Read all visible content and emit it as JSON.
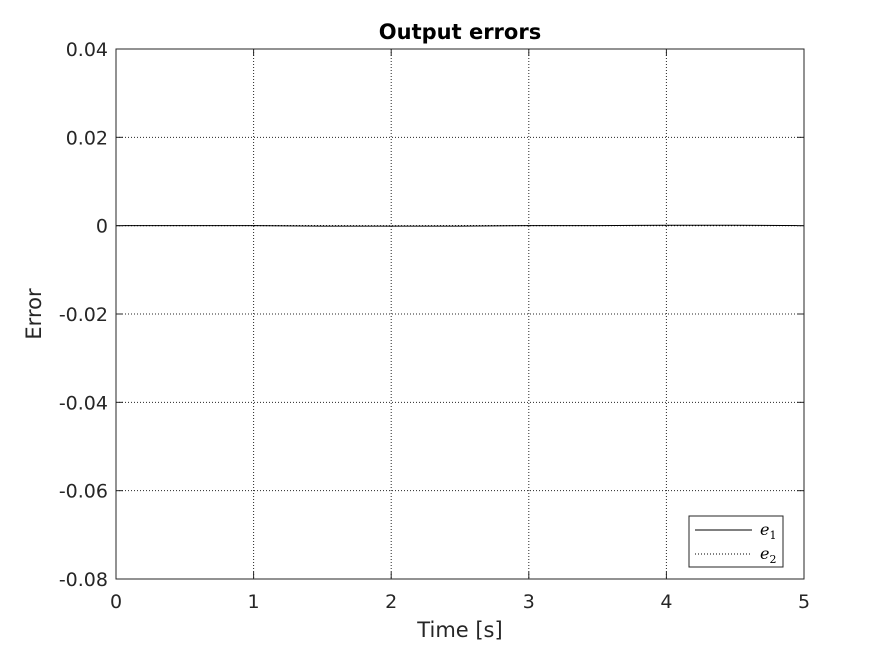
{
  "chart_data": {
    "type": "line",
    "title": "Output errors",
    "xlabel": "Time [s]",
    "ylabel": "Error",
    "xlim": [
      0,
      5
    ],
    "ylim": [
      -0.08,
      0.04
    ],
    "x_ticks": [
      0,
      1,
      2,
      3,
      4,
      5
    ],
    "x_tick_labels": [
      "0",
      "1",
      "2",
      "3",
      "4",
      "5"
    ],
    "y_ticks": [
      0.04,
      0.02,
      0,
      -0.02,
      -0.04,
      -0.06,
      -0.08
    ],
    "y_tick_labels": [
      "0.04",
      "0.02",
      "0",
      "-0.02",
      "-0.04",
      "-0.06",
      "-0.08"
    ],
    "grid": true,
    "legend_position": "bottom-right",
    "series": [
      {
        "name": "e",
        "subscript": "1",
        "line_style": "solid",
        "color": "#000000",
        "x": [
          0,
          0.5,
          1,
          1.5,
          2,
          2.5,
          3,
          3.5,
          4,
          4.5,
          5
        ],
        "y": [
          0,
          0,
          0,
          -0.0001,
          -0.0001,
          -0.0001,
          0,
          0,
          0.0001,
          0.0001,
          0
        ]
      },
      {
        "name": "e",
        "subscript": "2",
        "line_style": "dotted",
        "color": "#000000",
        "x": [
          0,
          0.5,
          1,
          1.5,
          2,
          2.5,
          3,
          3.5,
          4,
          4.5,
          5
        ],
        "y": [
          0,
          0,
          0,
          0,
          -0.0001,
          0,
          0,
          0,
          0,
          0,
          0
        ]
      }
    ]
  }
}
